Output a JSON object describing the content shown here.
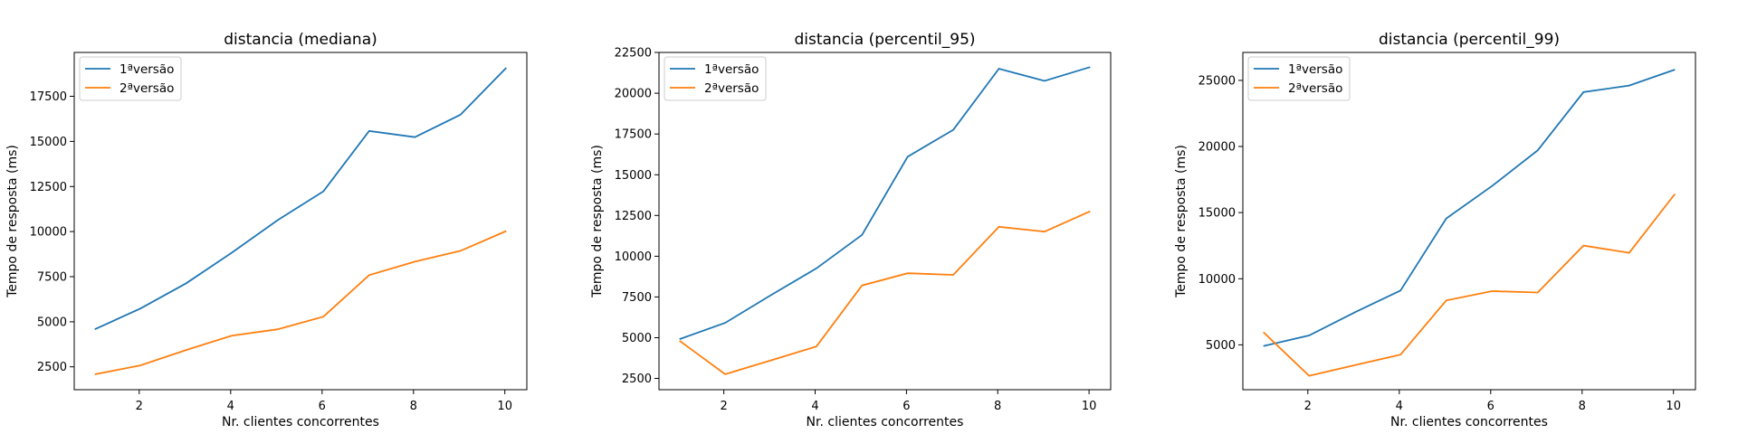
{
  "colors": {
    "series_1": "#1f77b4",
    "series_2": "#ff7f0e"
  },
  "chart_data": [
    {
      "type": "line",
      "title": "distancia (mediana)",
      "xlabel": "Nr. clientes concorrentes",
      "ylabel": "Tempo de resposta (ms)",
      "xlim": [
        0.55,
        10.45
      ],
      "ylim": [
        1250,
        19950
      ],
      "xticks": [
        "2",
        "4",
        "6",
        "8",
        "10"
      ],
      "yticks": [
        "2500",
        "5000",
        "7500",
        "10000",
        "12500",
        "15000",
        "17500"
      ],
      "legend_position": "top-left",
      "x": [
        1,
        2,
        3,
        4,
        5,
        6,
        7,
        8,
        9,
        10
      ],
      "series": [
        {
          "name": "1ªversão",
          "values": [
            4600,
            5750,
            7150,
            8850,
            10650,
            12250,
            15600,
            15250,
            16500,
            19100
          ]
        },
        {
          "name": "2ªversão",
          "values": [
            2100,
            2600,
            3450,
            4250,
            4600,
            5300,
            7600,
            8350,
            8950,
            10050
          ]
        }
      ]
    },
    {
      "type": "line",
      "title": "distancia (percentil_95)",
      "xlabel": "Nr. clientes concorrentes",
      "ylabel": "Tempo de resposta (ms)",
      "xlim": [
        0.55,
        10.45
      ],
      "ylim": [
        1800,
        22500
      ],
      "xticks": [
        "2",
        "4",
        "6",
        "8",
        "10"
      ],
      "yticks": [
        "2500",
        "5000",
        "7500",
        "10000",
        "12500",
        "15000",
        "17500",
        "20000",
        "22500"
      ],
      "legend_position": "top-left",
      "x": [
        1,
        2,
        3,
        4,
        5,
        6,
        7,
        8,
        9,
        10
      ],
      "series": [
        {
          "name": "1ªversão",
          "values": [
            4900,
            5900,
            7600,
            9250,
            11300,
            16100,
            17750,
            21500,
            20750,
            21600
          ]
        },
        {
          "name": "2ªversão",
          "values": [
            4800,
            2750,
            3600,
            4450,
            8200,
            8950,
            8850,
            11800,
            11500,
            12750
          ]
        }
      ]
    },
    {
      "type": "line",
      "title": "distancia (percentil_99)",
      "xlabel": "Nr. clientes concorrentes",
      "ylabel": "Tempo de resposta (ms)",
      "xlim": [
        0.55,
        10.45
      ],
      "ylim": [
        1800,
        27300
      ],
      "xticks": [
        "2",
        "4",
        "6",
        "8",
        "10"
      ],
      "yticks": [
        "5000",
        "10000",
        "15000",
        "20000",
        "25000"
      ],
      "legend_position": "top-left",
      "x": [
        1,
        2,
        3,
        4,
        5,
        6,
        7,
        8,
        9,
        10
      ],
      "series": [
        {
          "name": "1ªversão",
          "values": [
            5100,
            5900,
            7650,
            9300,
            14750,
            17200,
            19900,
            24300,
            24800,
            26000
          ]
        },
        {
          "name": "2ªversão",
          "values": [
            6150,
            2850,
            3650,
            4450,
            8550,
            9250,
            9150,
            12700,
            12150,
            16600
          ]
        }
      ]
    }
  ]
}
